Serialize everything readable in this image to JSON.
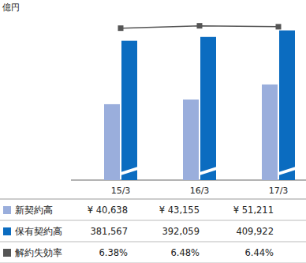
{
  "chart_data": [
    {
      "type": "bar",
      "y_label": "億円",
      "categories": [
        "15/3",
        "16/3",
        "17/3"
      ],
      "series": [
        {
          "name": "新契約高",
          "color": "#9aaedc",
          "values": [
            40638,
            43155,
            51211
          ],
          "value_labels": [
            "¥ 40,638",
            "¥ 43,155",
            "¥ 51,211"
          ]
        },
        {
          "name": "保有契約高",
          "color": "#0b6cc0",
          "axis": "y2",
          "values": [
            381567,
            392059,
            409922
          ],
          "value_labels": [
            "381,567",
            "392,059",
            "409,922"
          ]
        }
      ],
      "ylim": [
        0,
        88000
      ],
      "y2lim": [
        0,
        450000
      ],
      "data_labels": true,
      "tick_labels": "x",
      "grid": false
    },
    {
      "type": "line",
      "categories": [
        "15/3",
        "16/3",
        "17/3"
      ],
      "series": [
        {
          "name": "解約失効率",
          "color": "#555555",
          "marker": "square",
          "values": [
            6.38,
            6.48,
            6.44
          ],
          "value_labels": [
            "6.38%",
            "6.48%",
            "6.44%"
          ]
        }
      ],
      "ylim": [
        0,
        6.9
      ],
      "data_labels": true,
      "tick_labels": false
    }
  ]
}
